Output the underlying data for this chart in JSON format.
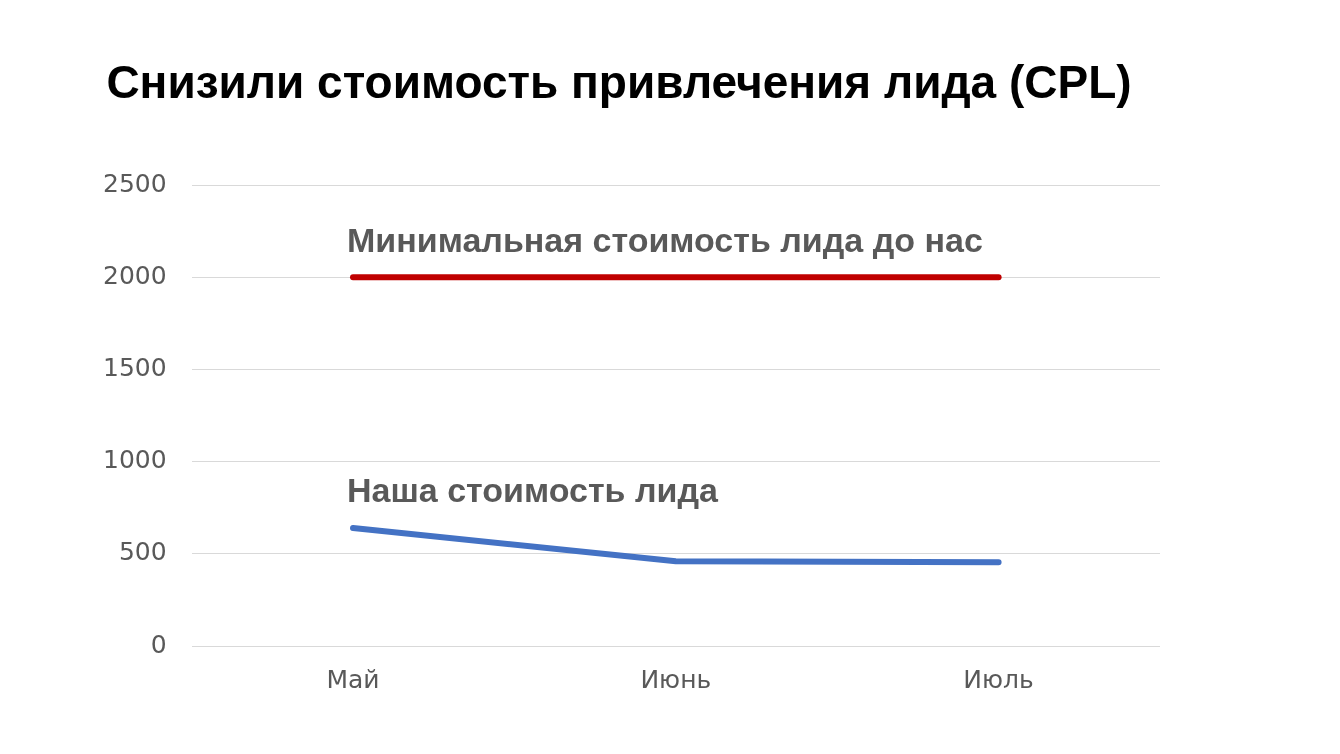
{
  "chart_data": {
    "type": "line",
    "title": "Снизили стоимость привлечения лида (CPL)",
    "categories": [
      "Май",
      "Июнь",
      "Июль"
    ],
    "series": [
      {
        "name": "Минимальная стоимость лида до нас",
        "color": "#c00000",
        "values": [
          2000,
          2000,
          2000
        ]
      },
      {
        "name": "Наша стоимость лида",
        "color": "#4472c4",
        "values": [
          640,
          460,
          455
        ]
      }
    ],
    "ylim": [
      0,
      2500
    ],
    "yticks": [
      0,
      500,
      1000,
      1500,
      2000,
      2500
    ],
    "grid": "y",
    "legend": false
  }
}
